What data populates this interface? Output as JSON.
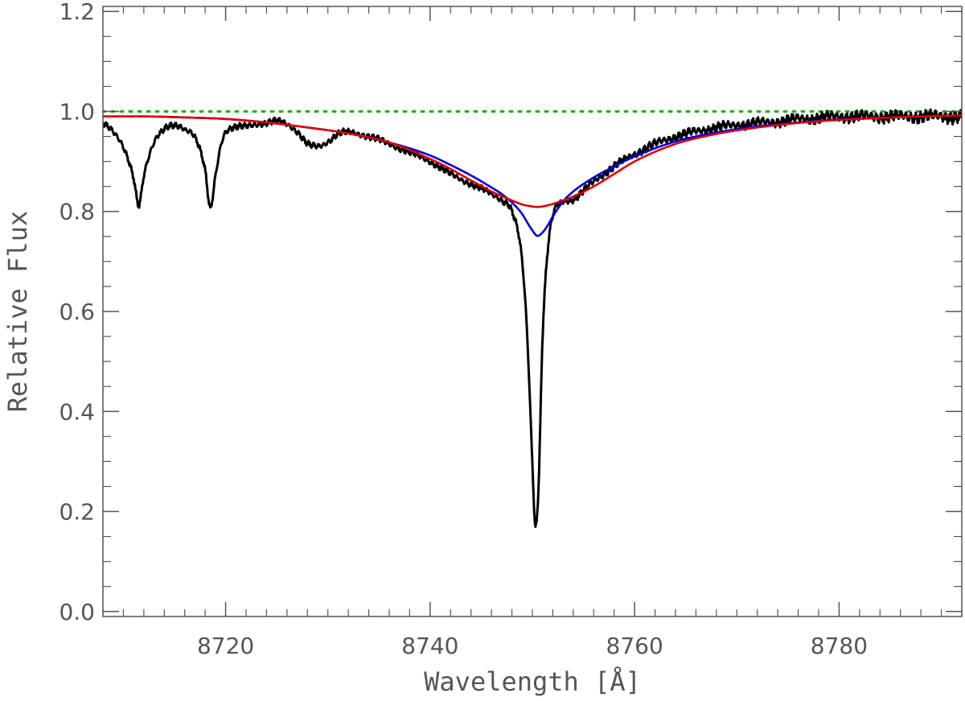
{
  "chart_data": {
    "type": "line",
    "xlabel": "Wavelength [Å]",
    "ylabel": "Relative Flux",
    "xlim": [
      8708,
      8792
    ],
    "ylim": [
      -0.01,
      1.21
    ],
    "x_ticks": [
      8720,
      8740,
      8760,
      8780
    ],
    "x_tick_labels": [
      "8720",
      "8740",
      "8760",
      "8780"
    ],
    "y_ticks": [
      0.0,
      0.2,
      0.4,
      0.6,
      0.8,
      1.0,
      1.2
    ],
    "y_tick_labels": [
      "0.0",
      "0.2",
      "0.4",
      "0.6",
      "0.8",
      "1.0",
      "1.2"
    ],
    "x_minor_step": 2,
    "y_minor_step": 0.05,
    "grid": false,
    "colors": {
      "observed": "#000000",
      "model_blue": "#0000dd",
      "model_red": "#dd0000",
      "continuum": "#00bb00",
      "axis": "#555555"
    },
    "series": [
      {
        "style": "observed",
        "x": [
          8708,
          8709,
          8710,
          8711,
          8711.5,
          8712,
          8713,
          8714,
          8715,
          8716,
          8717,
          8718,
          8718.5,
          8719,
          8719.5,
          8720,
          8721,
          8722,
          8723,
          8724,
          8725,
          8726,
          8727,
          8728,
          8729,
          8730,
          8731,
          8732,
          8734,
          8736,
          8738,
          8740,
          8742,
          8744,
          8746,
          8747,
          8748,
          8749,
          8749.5,
          8750,
          8750.3,
          8750.6,
          8751,
          8751.5,
          8752,
          8753,
          8754,
          8756,
          8758,
          8760,
          8762,
          8764,
          8766,
          8768,
          8770,
          8772,
          8774,
          8776,
          8778,
          8780,
          8782,
          8784,
          8786,
          8788,
          8790,
          8792
        ],
        "y": [
          0.975,
          0.96,
          0.93,
          0.865,
          0.81,
          0.87,
          0.94,
          0.965,
          0.97,
          0.965,
          0.95,
          0.88,
          0.805,
          0.87,
          0.93,
          0.96,
          0.968,
          0.97,
          0.975,
          0.977,
          0.98,
          0.975,
          0.96,
          0.935,
          0.93,
          0.94,
          0.955,
          0.958,
          0.95,
          0.935,
          0.918,
          0.9,
          0.875,
          0.855,
          0.835,
          0.823,
          0.8,
          0.7,
          0.55,
          0.3,
          0.17,
          0.25,
          0.55,
          0.72,
          0.79,
          0.82,
          0.825,
          0.86,
          0.89,
          0.915,
          0.935,
          0.95,
          0.96,
          0.968,
          0.973,
          0.977,
          0.98,
          0.985,
          0.987,
          0.99,
          0.99,
          0.99,
          0.99,
          0.99,
          0.99,
          0.99
        ]
      },
      {
        "style": "model_blue",
        "x": [
          8708,
          8712,
          8716,
          8720,
          8724,
          8728,
          8732,
          8736,
          8740,
          8742,
          8744,
          8746,
          8747,
          8748,
          8749,
          8749.5,
          8750,
          8750.5,
          8751,
          8751.5,
          8752,
          8753,
          8754,
          8756,
          8758,
          8760,
          8764,
          8768,
          8772,
          8776,
          8780,
          8784,
          8788,
          8792
        ],
        "y": [
          0.99,
          0.99,
          0.988,
          0.985,
          0.978,
          0.968,
          0.956,
          0.938,
          0.912,
          0.893,
          0.872,
          0.848,
          0.835,
          0.818,
          0.795,
          0.778,
          0.762,
          0.751,
          0.758,
          0.772,
          0.79,
          0.82,
          0.84,
          0.868,
          0.89,
          0.91,
          0.94,
          0.958,
          0.97,
          0.978,
          0.984,
          0.987,
          0.99,
          0.992
        ]
      },
      {
        "style": "model_red",
        "x": [
          8708,
          8712,
          8716,
          8720,
          8724,
          8728,
          8732,
          8736,
          8740,
          8742,
          8744,
          8746,
          8748,
          8749,
          8750,
          8750.5,
          8751,
          8752,
          8753,
          8754,
          8756,
          8758,
          8760,
          8764,
          8768,
          8772,
          8776,
          8780,
          8784,
          8788,
          8792
        ],
        "y": [
          0.99,
          0.99,
          0.988,
          0.985,
          0.978,
          0.968,
          0.956,
          0.938,
          0.905,
          0.885,
          0.862,
          0.84,
          0.822,
          0.814,
          0.81,
          0.809,
          0.81,
          0.815,
          0.822,
          0.83,
          0.85,
          0.875,
          0.9,
          0.935,
          0.955,
          0.968,
          0.977,
          0.983,
          0.987,
          0.99,
          0.992
        ]
      },
      {
        "style": "continuum",
        "x": [
          8708,
          8792
        ],
        "y": [
          1.0,
          1.0
        ]
      }
    ]
  }
}
